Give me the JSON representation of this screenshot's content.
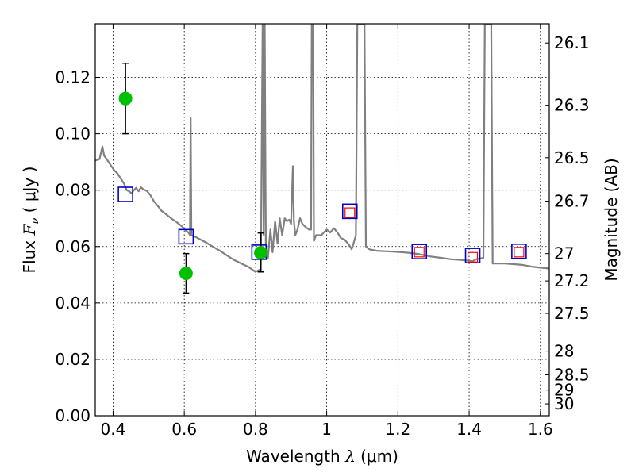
{
  "chart_data": {
    "type": "scatter",
    "xlabel": {
      "prefix": "Wavelength  ",
      "symbol": "λ",
      "unit": " (μm)"
    },
    "ylabel": {
      "prefix": "Flux  ",
      "symbol": "F",
      "subscript": "ν",
      "unit": "  ( μJy )"
    },
    "ylabel_right": "Magnitude (AB)",
    "xlim": [
      0.35,
      1.625
    ],
    "ylim": [
      0.0,
      0.139
    ],
    "grid": true,
    "x_ticks": [
      {
        "value": 0.4,
        "label": "0.4"
      },
      {
        "value": 0.6,
        "label": "0.6"
      },
      {
        "value": 0.8,
        "label": "0.8"
      },
      {
        "value": 1.0,
        "label": "1"
      },
      {
        "value": 1.2,
        "label": "1.2"
      },
      {
        "value": 1.4,
        "label": "1.4"
      },
      {
        "value": 1.6,
        "label": "1.6"
      }
    ],
    "y_ticks": [
      {
        "value": 0.0,
        "label": "0.00"
      },
      {
        "value": 0.02,
        "label": "0.02"
      },
      {
        "value": 0.04,
        "label": "0.04"
      },
      {
        "value": 0.06,
        "label": "0.06"
      },
      {
        "value": 0.08,
        "label": "0.08"
      },
      {
        "value": 0.1,
        "label": "0.10"
      },
      {
        "value": 0.12,
        "label": "0.12"
      }
    ],
    "right_ticks": [
      {
        "flux": 0.1322,
        "label": "26.1"
      },
      {
        "flux": 0.1101,
        "label": "26.3"
      },
      {
        "flux": 0.0915,
        "label": "26.5"
      },
      {
        "flux": 0.0761,
        "label": "26.7"
      },
      {
        "flux": 0.0575,
        "label": "27"
      },
      {
        "flux": 0.0478,
        "label": "27.2"
      },
      {
        "flux": 0.0363,
        "label": "27.5"
      },
      {
        "flux": 0.0229,
        "label": "28"
      },
      {
        "flux": 0.0145,
        "label": "28.5"
      },
      {
        "flux": 0.0091,
        "label": "29"
      },
      {
        "flux": 0.0042,
        "label": "30"
      }
    ],
    "series": [
      {
        "kind": "line",
        "color": "#808080",
        "points": [
          [
            0.35,
            0.0905
          ],
          [
            0.362,
            0.091
          ],
          [
            0.37,
            0.0955
          ],
          [
            0.375,
            0.0922
          ],
          [
            0.382,
            0.091
          ],
          [
            0.39,
            0.0895
          ],
          [
            0.398,
            0.088
          ],
          [
            0.405,
            0.0868
          ],
          [
            0.412,
            0.086
          ],
          [
            0.418,
            0.0848
          ],
          [
            0.425,
            0.0835
          ],
          [
            0.432,
            0.082
          ],
          [
            0.438,
            0.08
          ],
          [
            0.445,
            0.0796
          ],
          [
            0.452,
            0.0788
          ],
          [
            0.458,
            0.08
          ],
          [
            0.465,
            0.0808
          ],
          [
            0.472,
            0.0796
          ],
          [
            0.478,
            0.081
          ],
          [
            0.485,
            0.0803
          ],
          [
            0.495,
            0.0797
          ],
          [
            0.505,
            0.0782
          ],
          [
            0.515,
            0.076
          ],
          [
            0.525,
            0.0745
          ],
          [
            0.535,
            0.0728
          ],
          [
            0.545,
            0.0718
          ],
          [
            0.555,
            0.0708
          ],
          [
            0.565,
            0.0698
          ],
          [
            0.575,
            0.069
          ],
          [
            0.585,
            0.068
          ],
          [
            0.595,
            0.067
          ],
          [
            0.605,
            0.0655
          ],
          [
            0.612,
            0.065
          ],
          [
            0.616,
            0.064
          ],
          [
            0.618,
            0.1055
          ],
          [
            0.62,
            0.064
          ],
          [
            0.63,
            0.0635
          ],
          [
            0.645,
            0.0625
          ],
          [
            0.66,
            0.0615
          ],
          [
            0.68,
            0.06
          ],
          [
            0.7,
            0.0585
          ],
          [
            0.72,
            0.0568
          ],
          [
            0.74,
            0.0552
          ],
          [
            0.76,
            0.054
          ],
          [
            0.78,
            0.0528
          ],
          [
            0.8,
            0.051
          ],
          [
            0.815,
            0.052
          ],
          [
            0.82,
            0.139
          ],
          [
            0.823,
            0.064
          ],
          [
            0.826,
            0.139
          ],
          [
            0.829,
            0.061
          ],
          [
            0.835,
            0.056
          ],
          [
            0.842,
            0.066
          ],
          [
            0.848,
            0.058
          ],
          [
            0.855,
            0.069
          ],
          [
            0.862,
            0.061
          ],
          [
            0.868,
            0.07
          ],
          [
            0.875,
            0.064
          ],
          [
            0.882,
            0.07
          ],
          [
            0.888,
            0.069
          ],
          [
            0.895,
            0.0695
          ],
          [
            0.9,
            0.068
          ],
          [
            0.905,
            0.0885
          ],
          [
            0.908,
            0.069
          ],
          [
            0.912,
            0.064
          ],
          [
            0.918,
            0.066
          ],
          [
            0.925,
            0.07
          ],
          [
            0.932,
            0.068
          ],
          [
            0.94,
            0.067
          ],
          [
            0.95,
            0.066
          ],
          [
            0.956,
            0.066
          ],
          [
            0.958,
            0.139
          ],
          [
            0.962,
            0.139
          ],
          [
            0.964,
            0.062
          ],
          [
            0.97,
            0.064
          ],
          [
            0.985,
            0.064
          ],
          [
            0.992,
            0.065
          ],
          [
            1.0,
            0.066
          ],
          [
            1.01,
            0.065
          ],
          [
            1.02,
            0.0665
          ],
          [
            1.03,
            0.065
          ],
          [
            1.04,
            0.063
          ],
          [
            1.05,
            0.0625
          ],
          [
            1.06,
            0.061
          ],
          [
            1.066,
            0.06
          ],
          [
            1.07,
            0.059
          ],
          [
            1.075,
            0.061
          ],
          [
            1.082,
            0.064
          ],
          [
            1.086,
            0.139
          ],
          [
            1.106,
            0.139
          ],
          [
            1.11,
            0.06
          ],
          [
            1.12,
            0.059
          ],
          [
            1.14,
            0.0585
          ],
          [
            1.17,
            0.0583
          ],
          [
            1.2,
            0.0581
          ],
          [
            1.23,
            0.0578
          ],
          [
            1.26,
            0.0573
          ],
          [
            1.29,
            0.0565
          ],
          [
            1.32,
            0.056
          ],
          [
            1.35,
            0.0555
          ],
          [
            1.38,
            0.0552
          ],
          [
            1.41,
            0.0548
          ],
          [
            1.42,
            0.0555
          ],
          [
            1.44,
            0.056
          ],
          [
            1.444,
            0.139
          ],
          [
            1.462,
            0.139
          ],
          [
            1.466,
            0.054
          ],
          [
            1.5,
            0.054
          ],
          [
            1.55,
            0.0535
          ],
          [
            1.58,
            0.0528
          ],
          [
            1.6,
            0.0525
          ],
          [
            1.625,
            0.0522
          ]
        ]
      },
      {
        "kind": "square",
        "color": "#0000cc",
        "points": [
          [
            0.435,
            0.0785
          ],
          [
            0.605,
            0.0635
          ],
          [
            0.81,
            0.058
          ],
          [
            1.065,
            0.0725
          ],
          [
            1.26,
            0.0582
          ],
          [
            1.41,
            0.0568
          ],
          [
            1.54,
            0.0583
          ]
        ]
      },
      {
        "kind": "square-small",
        "color": "#ff0000",
        "points": [
          [
            1.065,
            0.072
          ],
          [
            1.26,
            0.058
          ],
          [
            1.41,
            0.0562
          ],
          [
            1.54,
            0.058
          ]
        ]
      },
      {
        "kind": "errorbar-point",
        "color": "#00c000",
        "points": [
          {
            "x": 0.435,
            "y": 0.1125,
            "ylow": 0.1,
            "yhigh": 0.125
          },
          {
            "x": 0.605,
            "y": 0.0505,
            "ylow": 0.0435,
            "yhigh": 0.0575
          },
          {
            "x": 0.815,
            "y": 0.0578,
            "ylow": 0.051,
            "yhigh": 0.0648
          }
        ]
      }
    ]
  }
}
